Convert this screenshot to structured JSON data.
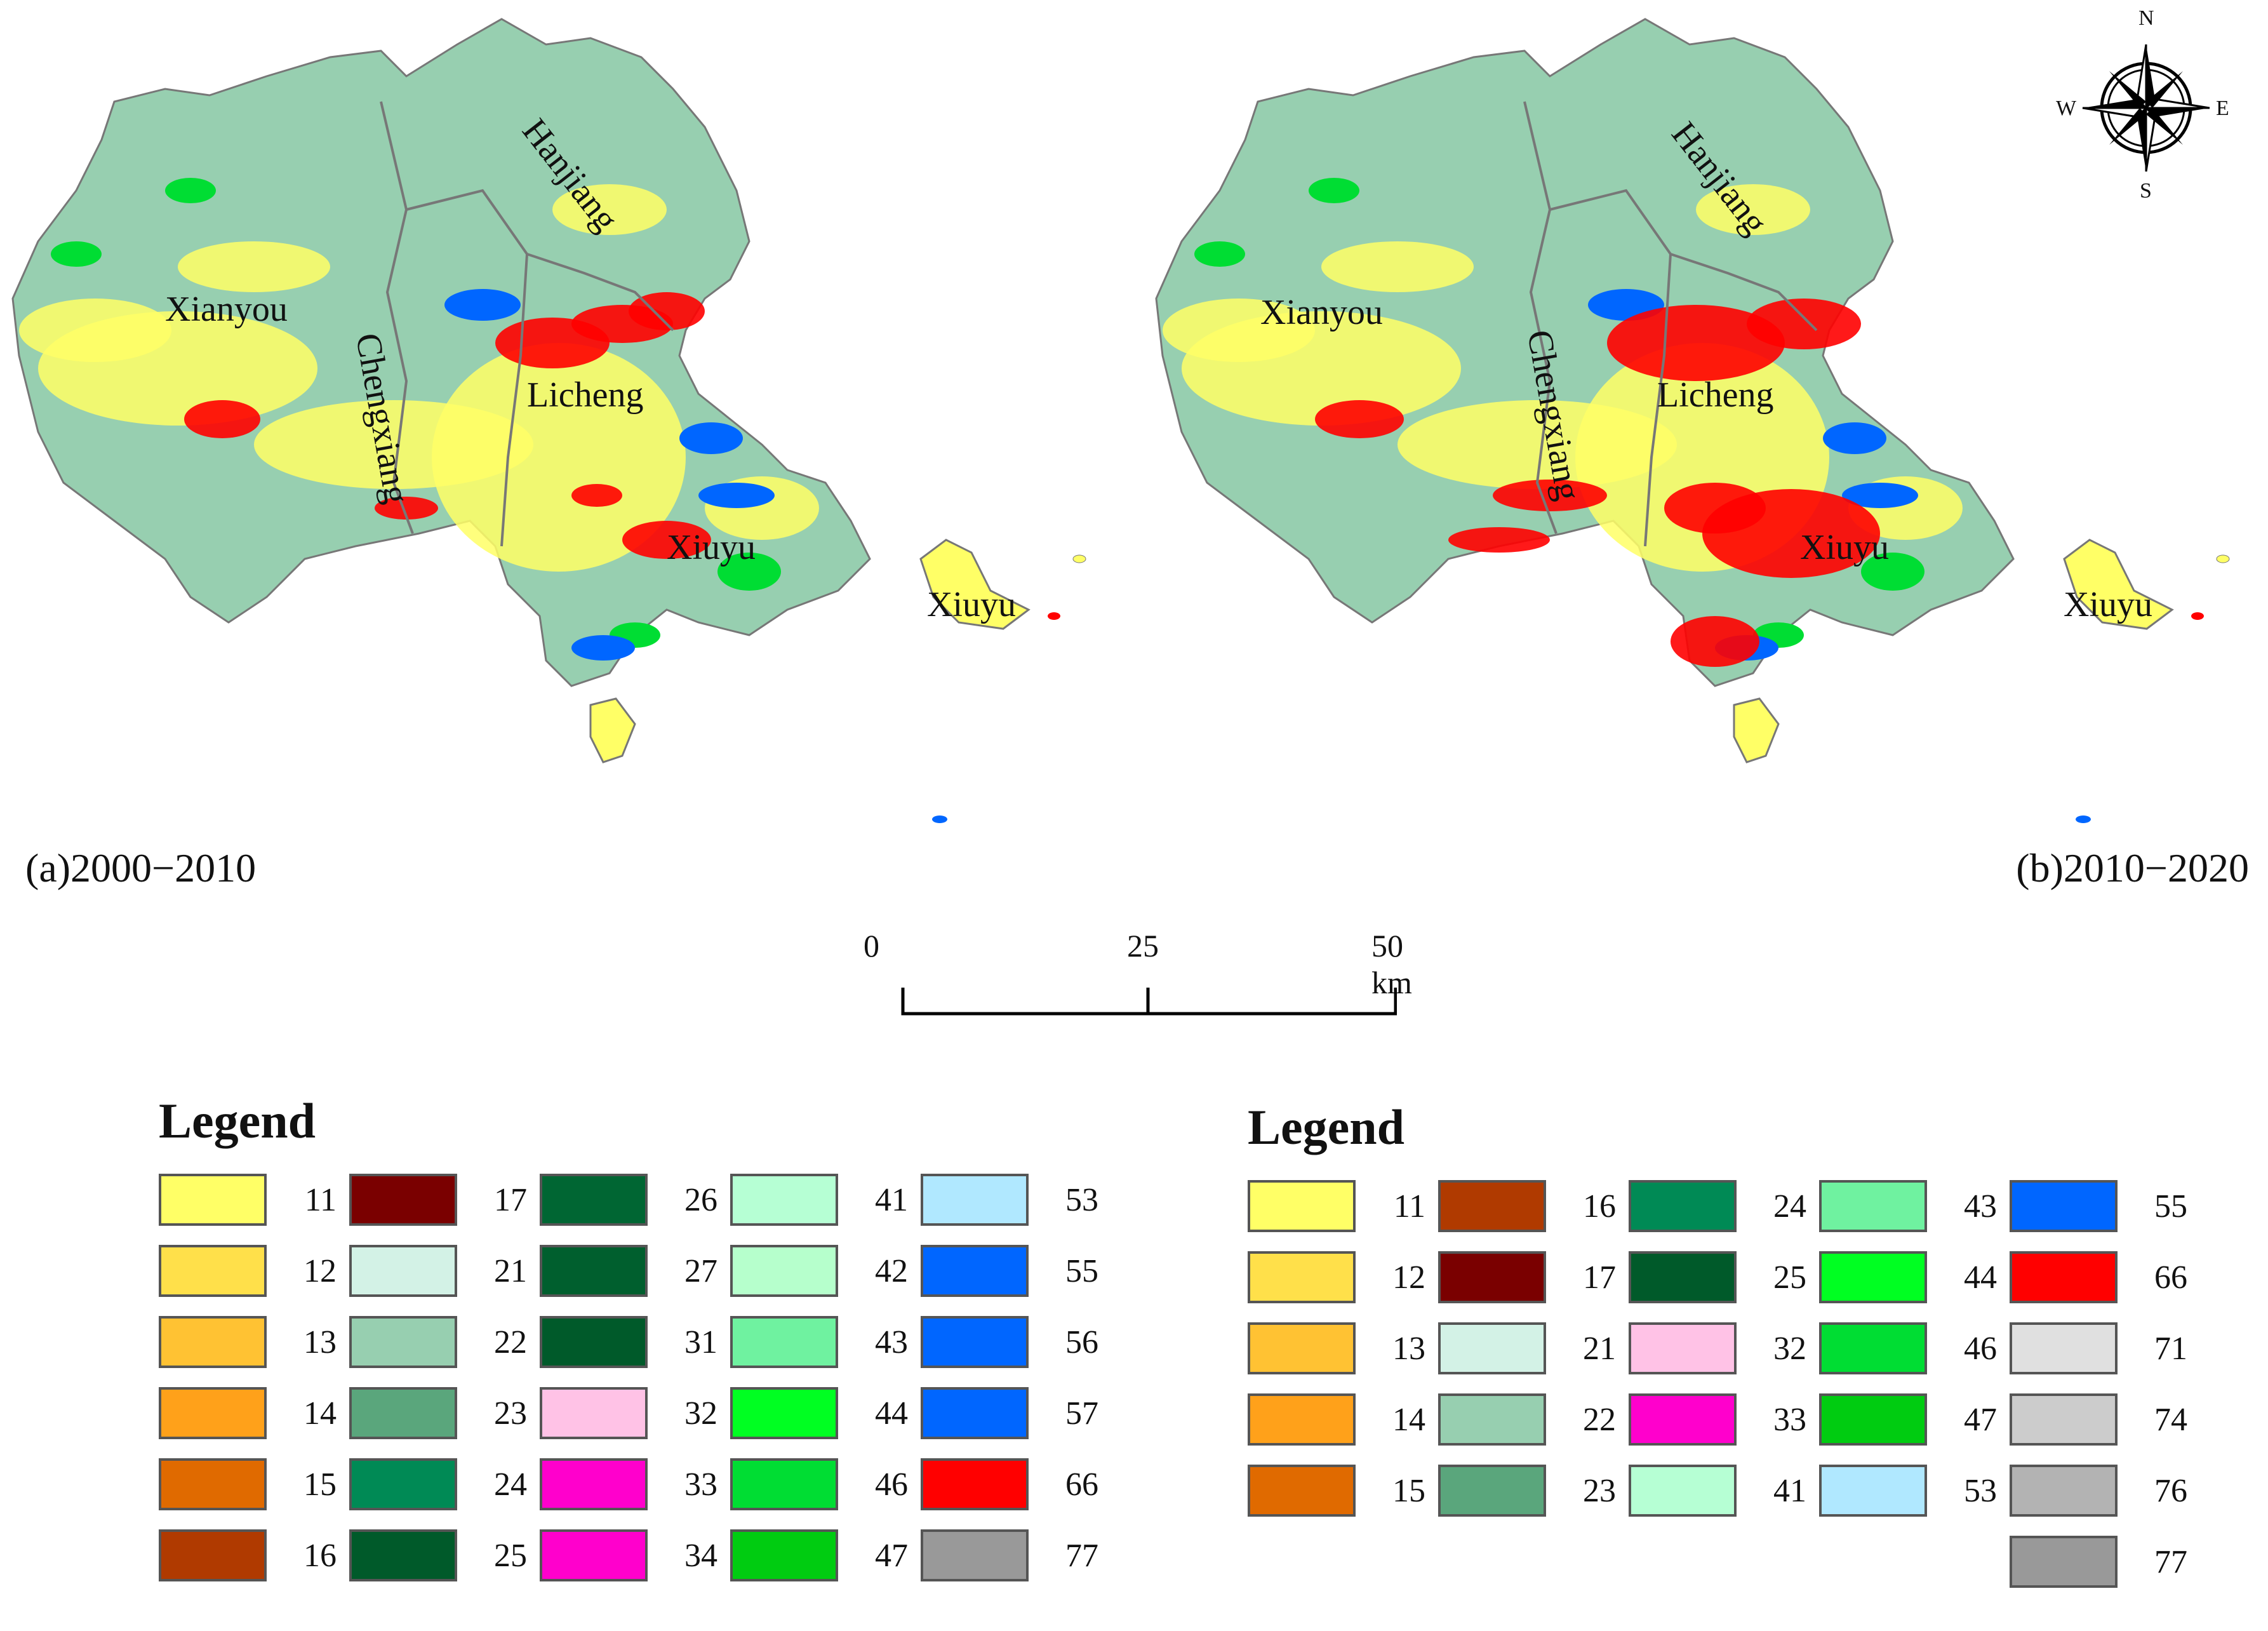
{
  "panels": [
    {
      "id": "a",
      "period_label": "(a)2000−2010",
      "place_names": {
        "xianyou": "Xianyou",
        "chengxiang": "Chengxiang",
        "hanjiang": "Hanjiang",
        "licheng": "Licheng",
        "xiuyu_main": "Xiuyu",
        "xiuyu_island": "Xiuyu"
      }
    },
    {
      "id": "b",
      "period_label": "(b)2010−2020",
      "place_names": {
        "xianyou": "Xianyou",
        "chengxiang": "Chengxiang",
        "hanjiang": "Hanjiang",
        "licheng": "Licheng",
        "xiuyu_main": "Xiuyu",
        "xiuyu_island": "Xiuyu"
      }
    }
  ],
  "scale_bar": {
    "ticks": [
      "0",
      "25",
      "50 km"
    ]
  },
  "compass": {
    "n": "N",
    "s": "S",
    "e": "E",
    "w": "W"
  },
  "legends": [
    {
      "title": "Legend",
      "rows": 6,
      "items": [
        {
          "code": "11",
          "color": "#ffff66"
        },
        {
          "code": "12",
          "color": "#ffe04a"
        },
        {
          "code": "13",
          "color": "#ffc233"
        },
        {
          "code": "14",
          "color": "#ffa11a"
        },
        {
          "code": "15",
          "color": "#e06a00"
        },
        {
          "code": "16",
          "color": "#b03a00"
        },
        {
          "code": "17",
          "color": "#7a0000"
        },
        {
          "code": "21",
          "color": "#d3f2e6"
        },
        {
          "code": "22",
          "color": "#97cfb0"
        },
        {
          "code": "23",
          "color": "#5aa67c"
        },
        {
          "code": "24",
          "color": "#008a55"
        },
        {
          "code": "25",
          "color": "#005a2a"
        },
        {
          "code": "26",
          "color": "#006633"
        },
        {
          "code": "27",
          "color": "#005f2e"
        },
        {
          "code": "31",
          "color": "#005a2a"
        },
        {
          "code": "32",
          "color": "#ffc2e6"
        },
        {
          "code": "33",
          "color": "#ff00cc"
        },
        {
          "code": "34",
          "color": "#ff00cc"
        },
        {
          "code": "41",
          "color": "#b6ffd4"
        },
        {
          "code": "42",
          "color": "#b6ffcc"
        },
        {
          "code": "43",
          "color": "#6ff2a0"
        },
        {
          "code": "44",
          "color": "#00ff22"
        },
        {
          "code": "46",
          "color": "#00dd33"
        },
        {
          "code": "47",
          "color": "#00cc11"
        },
        {
          "code": "53",
          "color": "#b0e8ff"
        },
        {
          "code": "55",
          "color": "#0066ff"
        },
        {
          "code": "56",
          "color": "#0066ff"
        },
        {
          "code": "57",
          "color": "#0066ff"
        },
        {
          "code": "66",
          "color": "#ff0000"
        },
        {
          "code": "77",
          "color": "#999999"
        }
      ]
    },
    {
      "title": "Legend",
      "rows": 6,
      "items": [
        {
          "code": "11",
          "color": "#ffff66"
        },
        {
          "code": "12",
          "color": "#ffe04a"
        },
        {
          "code": "13",
          "color": "#ffc233"
        },
        {
          "code": "14",
          "color": "#ffa11a"
        },
        {
          "code": "15",
          "color": "#e06a00"
        },
        {
          "code": "",
          "color": ""
        },
        {
          "code": "16",
          "color": "#b03a00"
        },
        {
          "code": "17",
          "color": "#7a0000"
        },
        {
          "code": "21",
          "color": "#d3f2e6"
        },
        {
          "code": "22",
          "color": "#97cfb0"
        },
        {
          "code": "23",
          "color": "#5aa67c"
        },
        {
          "code": "",
          "color": ""
        },
        {
          "code": "24",
          "color": "#008a55"
        },
        {
          "code": "25",
          "color": "#005a2a"
        },
        {
          "code": "32",
          "color": "#ffc2e6"
        },
        {
          "code": "33",
          "color": "#ff00cc"
        },
        {
          "code": "41",
          "color": "#b6ffd4"
        },
        {
          "code": "",
          "color": ""
        },
        {
          "code": "43",
          "color": "#6ff2a0"
        },
        {
          "code": "44",
          "color": "#00ff22"
        },
        {
          "code": "46",
          "color": "#00dd33"
        },
        {
          "code": "47",
          "color": "#00cc11"
        },
        {
          "code": "53",
          "color": "#b0e8ff"
        },
        {
          "code": "",
          "color": ""
        },
        {
          "code": "55",
          "color": "#0066ff"
        },
        {
          "code": "66",
          "color": "#ff0000"
        },
        {
          "code": "71",
          "color": "#e0e0e0"
        },
        {
          "code": "74",
          "color": "#cccccc"
        },
        {
          "code": "76",
          "color": "#b3b3b3"
        },
        {
          "code": "77",
          "color": "#999999"
        }
      ]
    }
  ],
  "colors": {
    "land_base": "#97cfb0",
    "cropland": "#ffff66",
    "urban": "#ff0000",
    "water": "#0066ff",
    "forest_green": "#00dd33",
    "outline": "#777777"
  }
}
